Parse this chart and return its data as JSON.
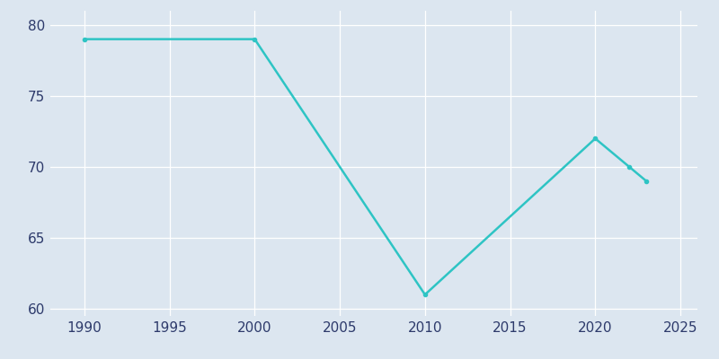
{
  "years": [
    1990,
    2000,
    2010,
    2020,
    2022,
    2023
  ],
  "population": [
    79,
    79,
    61,
    72,
    70,
    69
  ],
  "line_color": "#2ec4c4",
  "marker": ".",
  "marker_size": 6,
  "line_width": 1.8,
  "bg_color": "#dce6f0",
  "fig_bg_color": "#dce6f0",
  "grid_color": "#ffffff",
  "xlim": [
    1988,
    2026
  ],
  "ylim": [
    59.5,
    81
  ],
  "xticks": [
    1990,
    1995,
    2000,
    2005,
    2010,
    2015,
    2020,
    2025
  ],
  "yticks": [
    60,
    65,
    70,
    75,
    80
  ],
  "tick_color": "#2d3a6b",
  "tick_labelsize": 11
}
